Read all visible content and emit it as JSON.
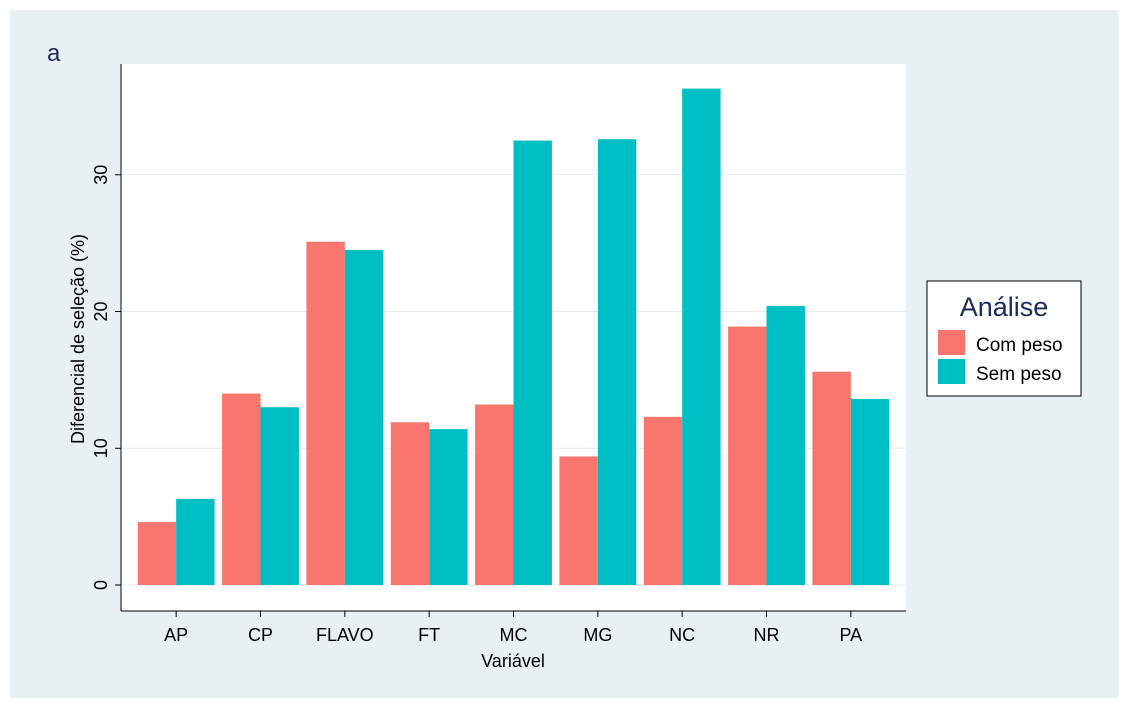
{
  "panel_tag": "a",
  "legend": {
    "title": "Análise",
    "placement": "right"
  },
  "colors": {
    "Com peso": "#f8766d",
    "Sem peso": "#00bfc4",
    "frame_background": "#e9f0f2",
    "plot_background": "#ffffff",
    "gridline": "#ebebeb"
  },
  "chart_data": {
    "type": "bar",
    "title": "",
    "xlabel": "Variável",
    "ylabel": "Diferencial de seleção (%)",
    "categories": [
      "AP",
      "CP",
      "FLAVO",
      "FT",
      "MC",
      "MG",
      "NC",
      "NR",
      "PA"
    ],
    "series": [
      {
        "name": "Com peso",
        "values": [
          4.6,
          14.0,
          25.1,
          11.9,
          13.2,
          9.4,
          12.3,
          18.9,
          15.6
        ]
      },
      {
        "name": "Sem peso",
        "values": [
          6.3,
          13.0,
          24.5,
          11.4,
          32.5,
          32.6,
          36.3,
          20.4,
          13.6
        ]
      }
    ],
    "ylim": [
      -1.9,
      38.1
    ],
    "yticks": [
      0,
      10,
      20,
      30
    ],
    "grid": true,
    "legend_placement": "right"
  }
}
